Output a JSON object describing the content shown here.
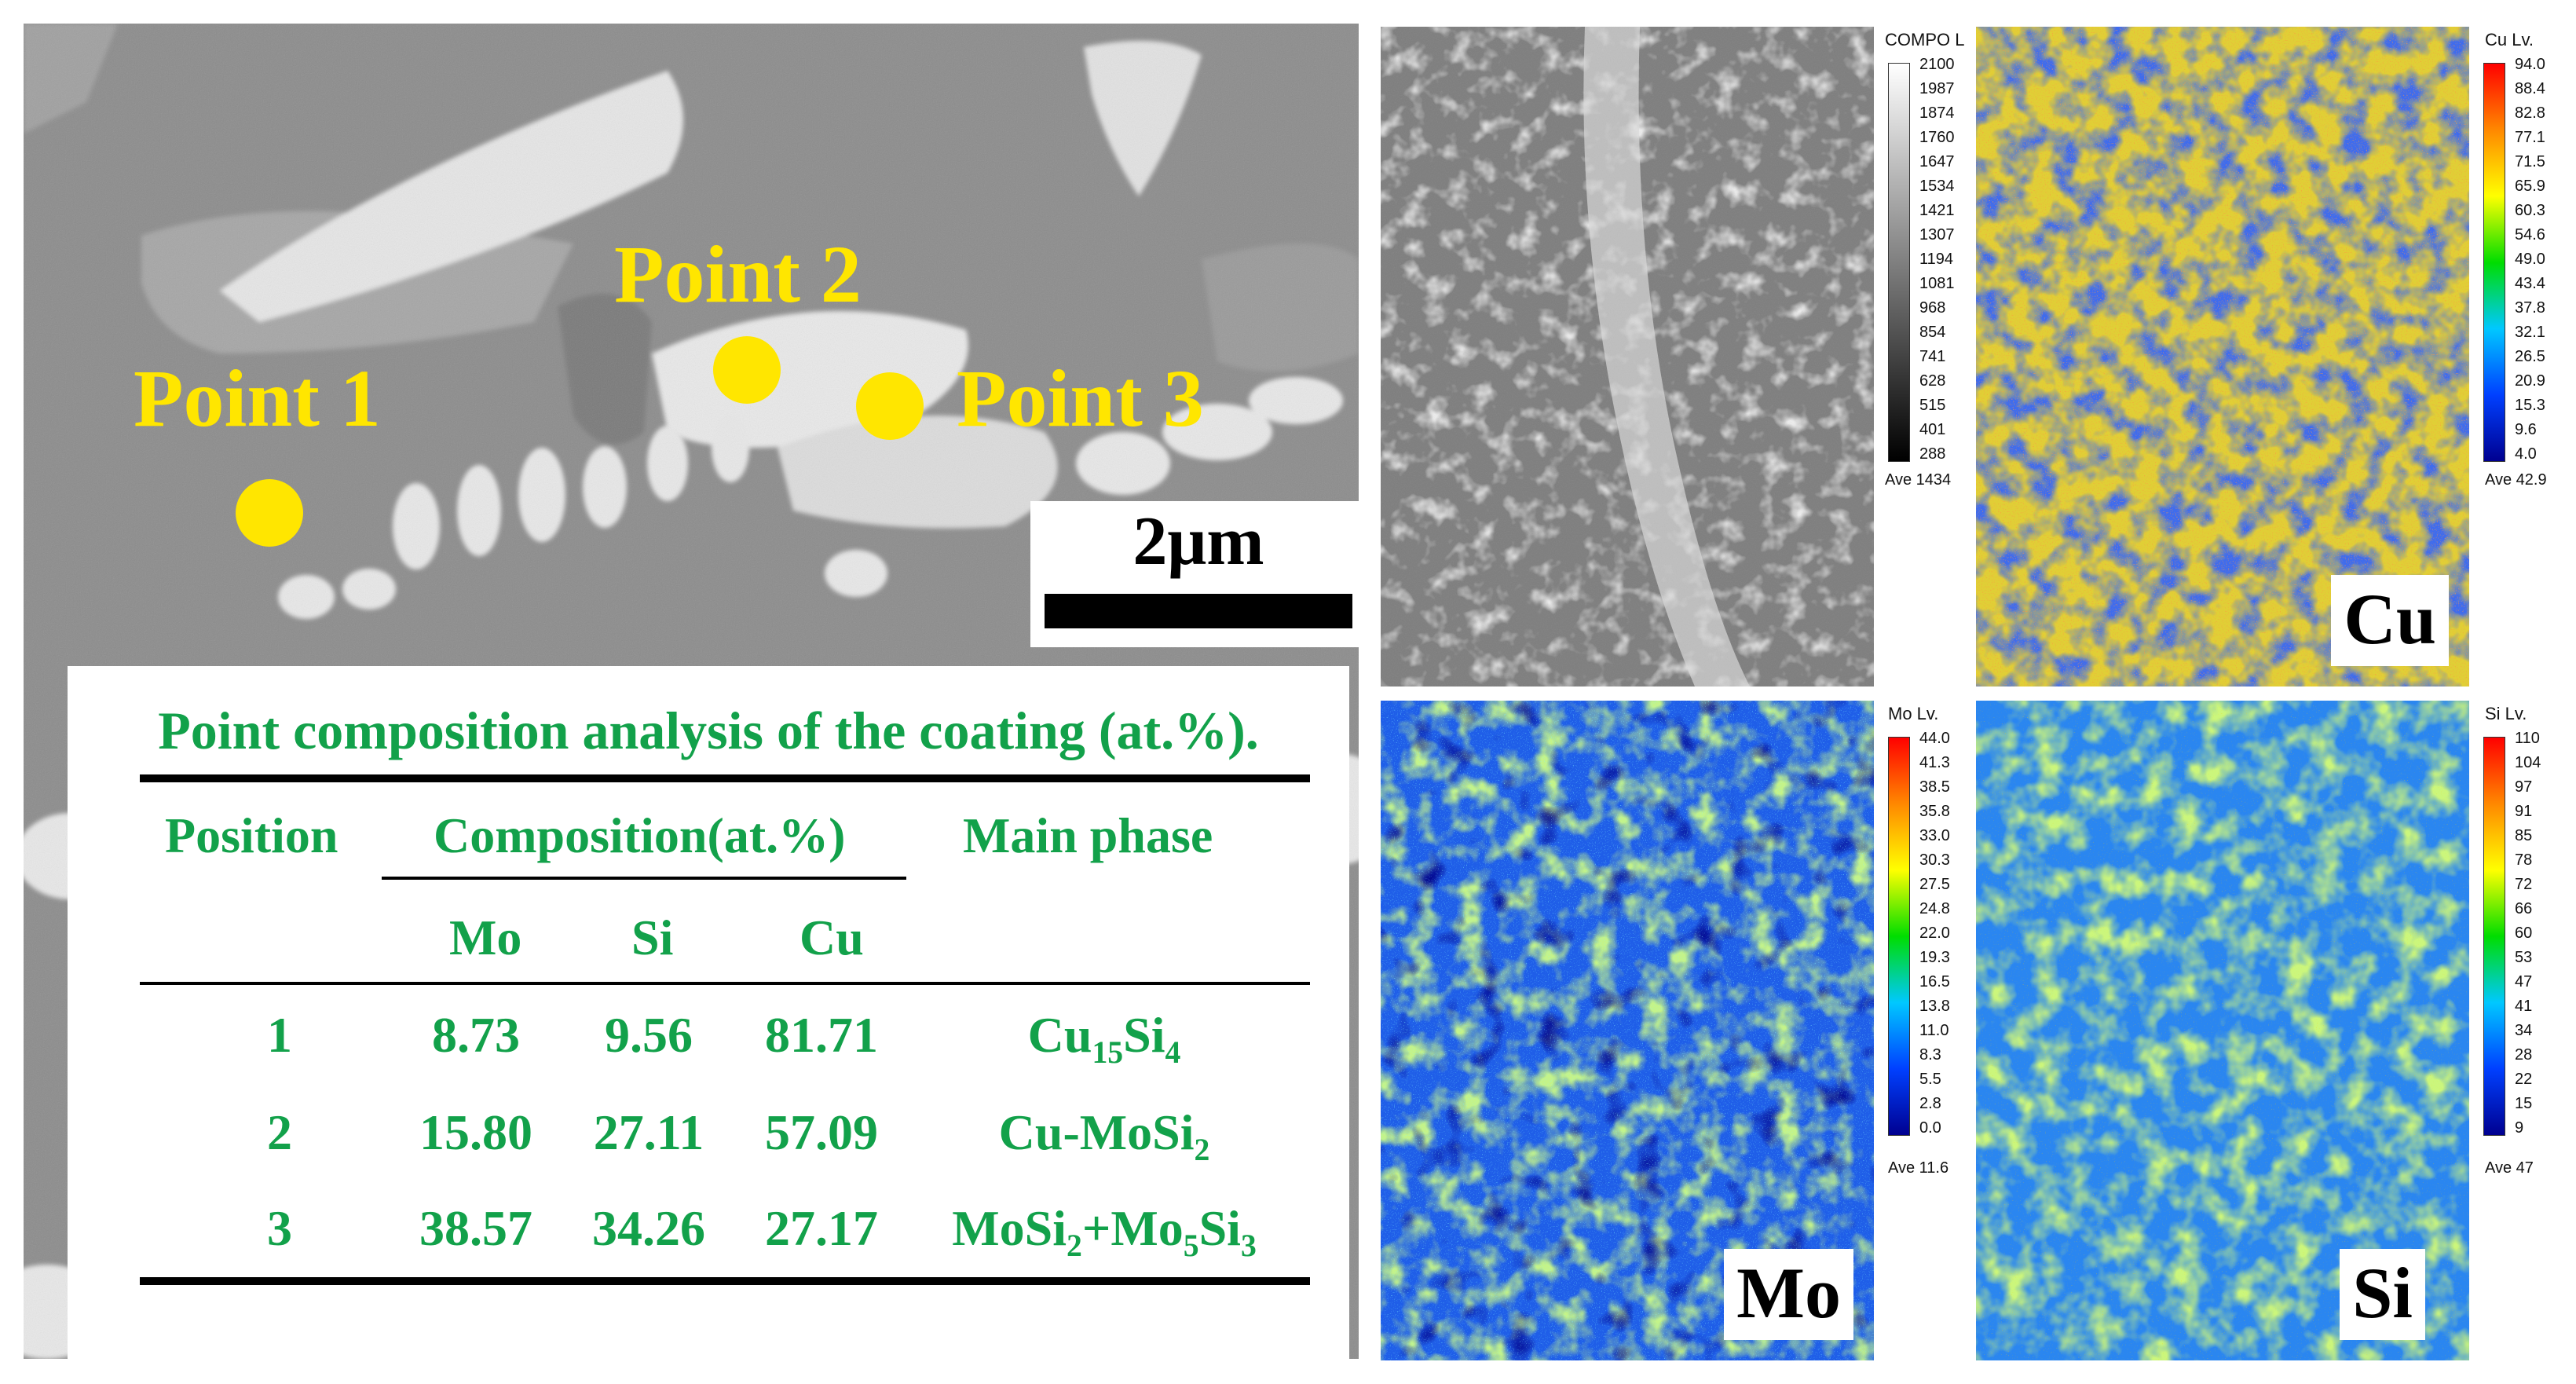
{
  "points": [
    {
      "label": "Point 1"
    },
    {
      "label": "Point 2"
    },
    {
      "label": "Point 3"
    }
  ],
  "scale_bar": {
    "label": "2μm"
  },
  "table": {
    "title": "Point composition analysis of the coating (at.%).",
    "headers": {
      "position": "Position",
      "composition": "Composition(at.%)",
      "main_phase": "Main phase"
    },
    "subheaders": [
      "Mo",
      "Si",
      "Cu"
    ],
    "rows": [
      {
        "position": "1",
        "mo": "8.73",
        "si": "9.56",
        "cu": "81.71",
        "phase": "Cu15Si4"
      },
      {
        "position": "2",
        "mo": "15.80",
        "si": "27.11",
        "cu": "57.09",
        "phase": "Cu-MoSi2"
      },
      {
        "position": "3",
        "mo": "38.57",
        "si": "34.26",
        "cu": "27.17",
        "phase": "MoSi2+Mo5Si3"
      }
    ]
  },
  "maps": [
    {
      "id": "compo",
      "title": "COMPO",
      "title_suffix": "L",
      "average": "Ave 1434",
      "element": "",
      "ticks": [
        "2100",
        "1987",
        "1874",
        "1760",
        "1647",
        "1534",
        "1421",
        "1307",
        "1194",
        "1081",
        "968",
        "854",
        "741",
        "628",
        "515",
        "401",
        "288"
      ],
      "scale": "gray"
    },
    {
      "id": "cu",
      "title": "Cu Lv.",
      "average": "Ave 42.9",
      "element": "Cu",
      "ticks": [
        "94.0",
        "88.4",
        "82.8",
        "77.1",
        "71.5",
        "65.9",
        "60.3",
        "54.6",
        "49.0",
        "43.4",
        "37.8",
        "32.1",
        "26.5",
        "20.9",
        "15.3",
        "9.6",
        "4.0"
      ],
      "scale": "rainbow"
    },
    {
      "id": "mo",
      "title": "Mo Lv.",
      "average": "Ave 11.6",
      "element": "Mo",
      "ticks": [
        "44.0",
        "41.3",
        "38.5",
        "35.8",
        "33.0",
        "30.3",
        "27.5",
        "24.8",
        "22.0",
        "19.3",
        "16.5",
        "13.8",
        "11.0",
        "8.3",
        "5.5",
        "2.8",
        "0.0"
      ],
      "scale": "rainbow"
    },
    {
      "id": "si",
      "title": "Si Lv.",
      "average": "Ave 47",
      "element": "Si",
      "ticks": [
        "110",
        "104",
        "97",
        "91",
        "85",
        "78",
        "72",
        "66",
        "60",
        "53",
        "47",
        "41",
        "34",
        "28",
        "22",
        "15",
        "9"
      ],
      "scale": "rainbow"
    }
  ],
  "colors": {
    "point_yellow": "#ffe600",
    "table_green": "#12a14a"
  }
}
